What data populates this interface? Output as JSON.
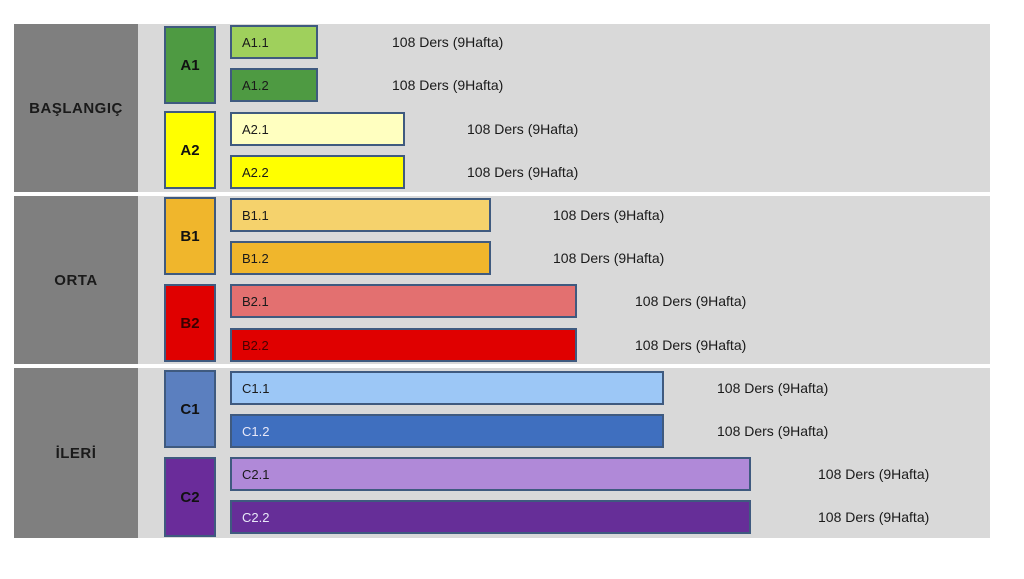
{
  "levels": [
    {
      "label": "BAŞLANGIÇ"
    },
    {
      "label": "ORTA"
    },
    {
      "label": "İLERİ"
    }
  ],
  "sublevels": [
    {
      "label": "A1",
      "color": "#4e9a42"
    },
    {
      "label": "A2",
      "color": "#ffff00"
    },
    {
      "label": "B1",
      "color": "#f0b62c"
    },
    {
      "label": "B2",
      "color": "#e00000"
    },
    {
      "label": "C1",
      "color": "#5b7fbf"
    },
    {
      "label": "C2",
      "color": "#6a2c9a"
    }
  ],
  "bars": [
    {
      "label": "A1.1",
      "color": "#9fd05c",
      "note": "108 Ders (9Hafta)"
    },
    {
      "label": "A1.2",
      "color": "#4e9a42",
      "note": "108 Ders (9Hafta)"
    },
    {
      "label": "A2.1",
      "color": "#ffffc0",
      "note": "108 Ders (9Hafta)"
    },
    {
      "label": "A2.2",
      "color": "#ffff00",
      "note": "108 Ders (9Hafta)"
    },
    {
      "label": "B1.1",
      "color": "#f5d26c",
      "note": "108 Ders (9Hafta)"
    },
    {
      "label": "B1.2",
      "color": "#f0b62c",
      "note": "108 Ders (9Hafta)"
    },
    {
      "label": "B2.1",
      "color": "#e37070",
      "note": "108 Ders (9Hafta)"
    },
    {
      "label": "B2.2",
      "color": "#e00000",
      "note": "108 Ders (9Hafta)"
    },
    {
      "label": "C1.1",
      "color": "#9cc7f6",
      "note": "108 Ders (9Hafta)"
    },
    {
      "label": "C1.2",
      "color": "#3f6fbf",
      "note": "108 Ders (9Hafta)"
    },
    {
      "label": "C2.1",
      "color": "#b089d8",
      "note": "108 Ders (9Hafta)"
    },
    {
      "label": "C2.2",
      "color": "#662e98",
      "note": "108 Ders (9Hafta)"
    }
  ]
}
